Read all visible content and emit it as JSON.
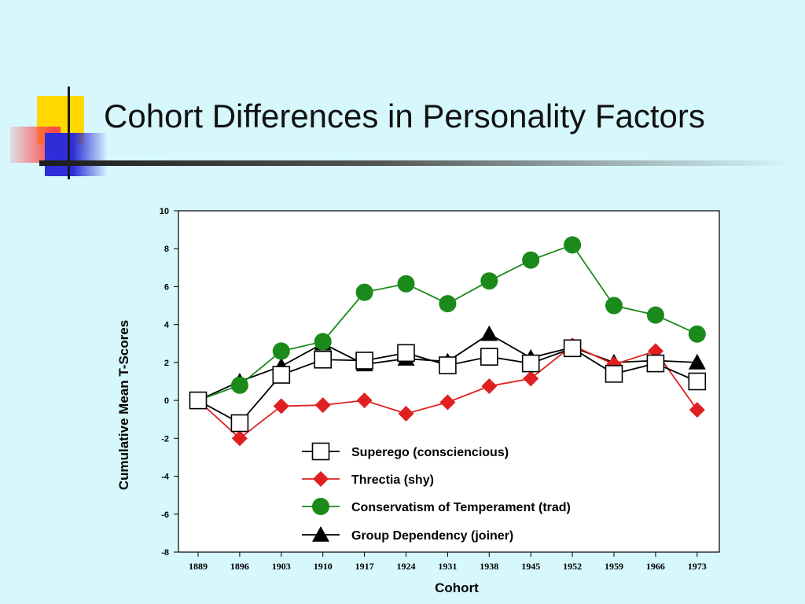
{
  "slide": {
    "title": "Cohort Differences in Personality Factors"
  },
  "colors": {
    "background": "#d6f7fc",
    "superego": "#000000",
    "threctia": "#e02020",
    "conservatism": "#1a8a1a",
    "group_dependency": "#000000"
  },
  "chart_data": {
    "type": "line",
    "title": "",
    "xlabel": "Cohort",
    "ylabel": "Cumulative Mean T-Scores",
    "ylim": [
      -8,
      10
    ],
    "yticks": [
      10,
      8,
      6,
      4,
      2,
      0,
      -2,
      -4,
      -6,
      -8
    ],
    "categories": [
      "1889",
      "1896",
      "1903",
      "1910",
      "1917",
      "1924",
      "1931",
      "1938",
      "1945",
      "1952",
      "1959",
      "1966",
      "1973"
    ],
    "grid": false,
    "legend_position": "bottom-right",
    "series": [
      {
        "name": "Superego (consciencious)",
        "marker": "square",
        "color": "#000000",
        "values": [
          0,
          -1.2,
          1.35,
          2.15,
          2.1,
          2.5,
          1.85,
          2.3,
          1.95,
          2.75,
          1.4,
          1.95,
          1.0
        ]
      },
      {
        "name": "Threctia (shy)",
        "marker": "diamond",
        "color": "#e02020",
        "values": [
          0,
          -2.0,
          -0.3,
          -0.25,
          0,
          -0.7,
          -0.1,
          0.75,
          1.15,
          2.9,
          1.9,
          2.6,
          -0.5
        ]
      },
      {
        "name": "Conservatism of Temperament (trad)",
        "marker": "circle",
        "color": "#1a8a1a",
        "values": [
          0,
          0.8,
          2.6,
          3.1,
          5.7,
          6.15,
          5.1,
          6.3,
          7.4,
          8.2,
          5.0,
          4.5,
          3.5
        ]
      },
      {
        "name": "Group Dependency (joiner)",
        "marker": "triangle",
        "color": "#000000",
        "values": [
          0,
          1.0,
          1.8,
          3.0,
          1.9,
          2.2,
          2.05,
          3.5,
          2.25,
          2.8,
          2.0,
          2.1,
          2.0
        ]
      }
    ]
  }
}
